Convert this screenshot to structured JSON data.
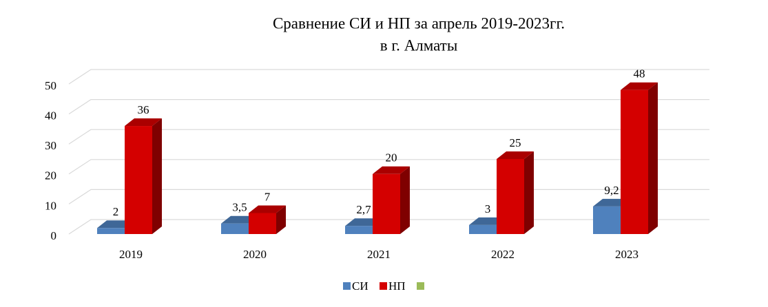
{
  "chart_data": {
    "type": "bar3d",
    "title": "Сравнение СИ и НП за  апрель 2019-2023гг.",
    "subtitle": "в г. Алматы",
    "categories": [
      "2019",
      "2020",
      "2021",
      "2022",
      "2023"
    ],
    "series": [
      {
        "name": "СИ",
        "color": "#4f81bd",
        "values": [
          2,
          3.5,
          2.7,
          3,
          9.2
        ],
        "value_labels": [
          "2",
          "3,5",
          "2,7",
          "3",
          "9,2"
        ]
      },
      {
        "name": "НП",
        "color": "#d40000",
        "values": [
          36,
          7,
          20,
          25,
          48
        ]
      }
    ],
    "ylim": [
      0,
      50
    ],
    "yticks": [
      0,
      10,
      20,
      30,
      40,
      50
    ],
    "grid": true,
    "legend": "bottom"
  }
}
